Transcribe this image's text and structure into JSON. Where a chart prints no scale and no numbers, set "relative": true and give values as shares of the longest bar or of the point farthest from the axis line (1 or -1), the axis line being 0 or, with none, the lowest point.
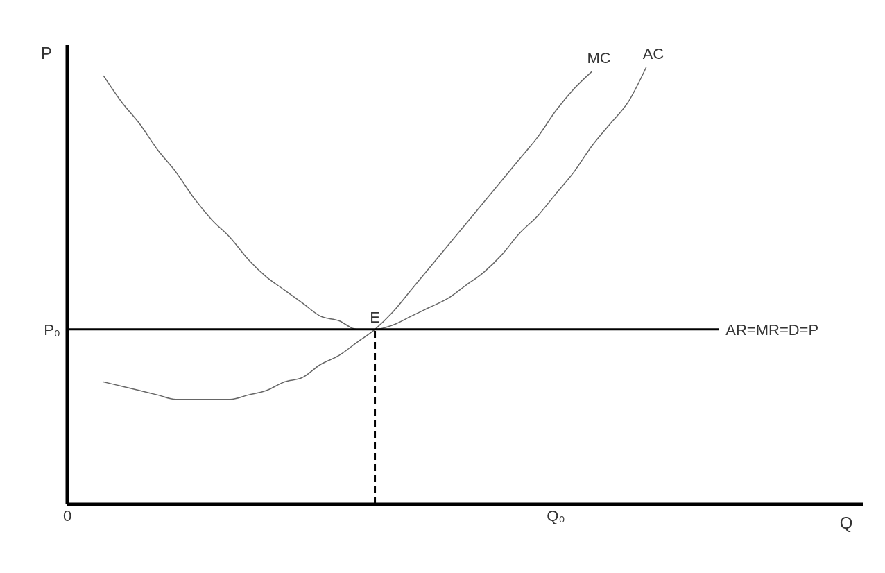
{
  "chart_data": {
    "type": "line",
    "relative": true,
    "xlabel": "Q",
    "ylabel": "P",
    "marker": "none",
    "grid": false,
    "legend": false,
    "categories": [
      "0",
      null,
      null,
      null,
      null,
      null,
      null,
      null,
      null,
      null,
      null,
      null,
      null,
      null,
      null,
      null,
      null,
      null,
      null,
      null,
      null,
      null,
      null,
      null,
      null,
      null,
      null,
      "Q₀",
      null,
      null,
      null,
      null,
      null,
      null,
      null,
      null,
      null,
      null,
      null,
      null,
      null,
      null,
      null,
      null,
      null
    ],
    "series": [
      {
        "name": "MC",
        "color": "#666666",
        "values": [
          null,
          null,
          0.28,
          0.27,
          0.26,
          0.25,
          0.24,
          0.24,
          0.24,
          0.24,
          0.25,
          0.26,
          0.28,
          0.29,
          0.32,
          0.34,
          0.37,
          0.4,
          0.44,
          0.49,
          0.54,
          0.59,
          0.64,
          0.69,
          0.74,
          0.79,
          0.84,
          0.9,
          0.95,
          0.99,
          null,
          null,
          null,
          null,
          null,
          null,
          null,
          null,
          null,
          null,
          null,
          null,
          null,
          null,
          null
        ]
      },
      {
        "name": "AC",
        "color": "#666666",
        "values": [
          null,
          null,
          0.98,
          0.92,
          0.87,
          0.81,
          0.76,
          0.7,
          0.65,
          0.61,
          0.56,
          0.52,
          0.49,
          0.46,
          0.43,
          0.42,
          0.4,
          0.4,
          0.41,
          0.43,
          0.45,
          0.47,
          0.5,
          0.53,
          0.57,
          0.62,
          0.66,
          0.71,
          0.76,
          0.82,
          0.87,
          0.92,
          1.0,
          null,
          null,
          null,
          null,
          null,
          null,
          null,
          null,
          null,
          null,
          null,
          null
        ]
      },
      {
        "name": "AR=MR=D=P",
        "color": "#000000",
        "values": [
          0.4,
          0.4,
          0.4,
          0.4,
          0.4,
          0.4,
          0.4,
          0.4,
          0.4,
          0.4,
          0.4,
          0.4,
          0.4,
          0.4,
          0.4,
          0.4,
          0.4,
          0.4,
          0.4,
          0.4,
          0.4,
          0.4,
          0.4,
          0.4,
          0.4,
          0.4,
          0.4,
          0.4,
          0.4,
          0.4,
          0.4,
          0.4,
          0.4,
          0.4,
          0.4,
          0.4,
          0.4,
          null,
          null,
          null,
          null,
          null,
          null,
          null,
          null
        ]
      }
    ],
    "annotations": [
      "P₀",
      "E"
    ]
  }
}
